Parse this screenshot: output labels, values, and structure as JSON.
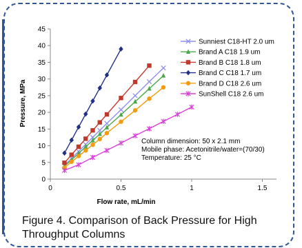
{
  "figure": {
    "caption_line1": "Figure 4. Comparison of Back Pressure  for High",
    "caption_line2": "Throughput Columns"
  },
  "chart_data": {
    "type": "line",
    "xlabel": "Flow rate, mL/min",
    "ylabel": "Pressure, MPa",
    "xlim": [
      0,
      1.6
    ],
    "ylim": [
      0,
      45
    ],
    "xticks": [
      0,
      0.5,
      1,
      1.5
    ],
    "xtick_labels": [
      "0",
      "0.5",
      "1",
      "1.5"
    ],
    "yticks": [
      0,
      5,
      10,
      15,
      20,
      25,
      30,
      35,
      40,
      45
    ],
    "grid": false,
    "legend_position": "top-right",
    "annotations": [
      "Column dimension: 50 x 2.1 mm",
      "Mobile phase: Acetonitrile/water=(70/30)",
      "Temperature: 25 °C"
    ],
    "series": [
      {
        "name": "Sunniest C18-HT 2.0 um",
        "color": "#8f8fef",
        "marker": "x",
        "x": [
          0.1,
          0.15,
          0.2,
          0.25,
          0.3,
          0.35,
          0.4,
          0.5,
          0.6,
          0.7,
          0.8
        ],
        "y": [
          4.1,
          6.2,
          8.3,
          10.4,
          12.5,
          14.6,
          16.7,
          20.8,
          25.0,
          29.2,
          33.3
        ]
      },
      {
        "name": "Brand A C18 1.9 um",
        "color": "#4aa84a",
        "marker": "triangle",
        "x": [
          0.1,
          0.15,
          0.2,
          0.25,
          0.3,
          0.35,
          0.4,
          0.5,
          0.6,
          0.7,
          0.8
        ],
        "y": [
          3.9,
          5.8,
          7.7,
          9.7,
          11.6,
          13.5,
          15.5,
          19.3,
          23.2,
          27.1,
          31.0
        ]
      },
      {
        "name": "Brand B C18 1.8 um",
        "color": "#c0392b",
        "marker": "square",
        "x": [
          0.1,
          0.15,
          0.2,
          0.25,
          0.3,
          0.35,
          0.4,
          0.5,
          0.6,
          0.7
        ],
        "y": [
          4.9,
          7.3,
          9.7,
          12.1,
          14.6,
          17.0,
          19.4,
          24.3,
          29.1,
          34.0
        ]
      },
      {
        "name": "Brand C C18 1.7 um",
        "color": "#1f2f86",
        "marker": "diamond",
        "x": [
          0.1,
          0.15,
          0.2,
          0.25,
          0.3,
          0.35,
          0.4,
          0.5
        ],
        "y": [
          7.8,
          11.7,
          15.6,
          19.5,
          23.4,
          27.3,
          31.2,
          39.0
        ]
      },
      {
        "name": "Brand D C18 2.6 um",
        "color": "#f39c12",
        "marker": "circle",
        "x": [
          0.1,
          0.15,
          0.2,
          0.25,
          0.3,
          0.35,
          0.4,
          0.5,
          0.6,
          0.7,
          0.8
        ],
        "y": [
          3.4,
          5.2,
          6.9,
          8.6,
          10.3,
          12.0,
          13.8,
          17.2,
          20.6,
          24.1,
          27.5
        ]
      },
      {
        "name": "SunShell C18 2.6 um",
        "color": "#d940d9",
        "marker": "star",
        "x": [
          0.1,
          0.2,
          0.3,
          0.4,
          0.5,
          0.6,
          0.7,
          0.8,
          0.9,
          1.0
        ],
        "y": [
          2.6,
          4.3,
          6.5,
          8.6,
          10.8,
          13.0,
          15.1,
          17.3,
          19.4,
          21.6
        ]
      }
    ]
  }
}
